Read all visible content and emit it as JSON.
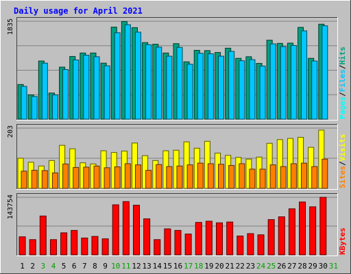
{
  "chart_data": {
    "type": "bar",
    "title": "Daily usage for April 2021",
    "colors": {
      "background": "#c0c0c0",
      "title": "#0000ff",
      "hits": "#00a080",
      "files": "#00c8ff",
      "pages": "#00ffff",
      "visits": "#ffff00",
      "sites": "#ff8000",
      "kbytes": "#ff0000",
      "weekend_day": "#00a000",
      "weekday": "#000000",
      "gridline": "#808080"
    },
    "x_labels": [
      "1",
      "2",
      "3",
      "4",
      "5",
      "6",
      "7",
      "8",
      "9",
      "10",
      "11",
      "12",
      "13",
      "14",
      "15",
      "16",
      "17",
      "18",
      "19",
      "20",
      "21",
      "22",
      "23",
      "24",
      "25",
      "26",
      "27",
      "28",
      "29",
      "30",
      "31"
    ],
    "weekend_days": [
      3,
      4,
      10,
      11,
      17,
      18,
      24,
      25,
      31
    ],
    "panels": [
      {
        "name": "hits_files",
        "max_label": "1835",
        "ylim": [
          0,
          1835
        ],
        "legend": [
          "Pages",
          "/",
          "Files",
          "/",
          "Hits"
        ],
        "legend_colors": [
          "#00ffff",
          "#000000",
          "#00c8ff",
          "#000000",
          "#00a080"
        ],
        "series": [
          {
            "name": "Hits",
            "values": [
              650,
              455,
              1090,
              490,
              975,
              1175,
              1240,
              1240,
              1050,
              1725,
              1830,
              1715,
              1435,
              1405,
              1240,
              1415,
              1075,
              1290,
              1285,
              1250,
              1330,
              1140,
              1170,
              1045,
              1480,
              1420,
              1425,
              1720,
              1140,
              1780,
              0
            ]
          },
          {
            "name": "Files",
            "values": [
              615,
              425,
              1050,
              455,
              930,
              1110,
              1200,
              1170,
              1000,
              1620,
              1770,
              1630,
              1395,
              1350,
              1180,
              1345,
              1030,
              1235,
              1225,
              1180,
              1270,
              1095,
              1115,
              995,
              1410,
              1360,
              1380,
              1655,
              1090,
              1750,
              0
            ]
          }
        ]
      },
      {
        "name": "visits_sites",
        "max_label": "203",
        "ylim": [
          0,
          210
        ],
        "legend": [
          "Sites",
          "/",
          "Visits"
        ],
        "legend_colors": [
          "#ff8000",
          "#000000",
          "#ffff00"
        ],
        "series": [
          {
            "name": "Visits",
            "values": [
              105,
              91,
              78,
              97,
              150,
              138,
              89,
              85,
              131,
              125,
              130,
              158,
              114,
              97,
              131,
              133,
              162,
              140,
              164,
              123,
              115,
              108,
              102,
              109,
              157,
              170,
              174,
              178,
              143,
              203,
              0
            ]
          },
          {
            "name": "Sites",
            "values": [
              60,
              63,
              62,
              54,
              85,
              73,
              74,
              78,
              72,
              75,
              86,
              82,
              63,
              83,
              76,
              78,
              82,
              88,
              86,
              84,
              80,
              86,
              67,
              67,
              82,
              76,
              86,
              88,
              76,
              102,
              0
            ]
          }
        ]
      },
      {
        "name": "kbytes",
        "max_label": "143754",
        "ylim": [
          0,
          143754
        ],
        "legend": [
          "KBytes"
        ],
        "legend_colors": [
          "#ff0000"
        ],
        "series": [
          {
            "name": "KBytes",
            "values": [
              45000,
              38000,
              97000,
              38000,
              55000,
              61000,
              42000,
              46000,
              40000,
              125000,
              133000,
              124000,
              90000,
              38000,
              65000,
              61000,
              52000,
              81000,
              84000,
              80000,
              82000,
              47000,
              53000,
              50000,
              88000,
              95000,
              115000,
              132000,
              120000,
              143754,
              0
            ]
          }
        ]
      }
    ]
  }
}
